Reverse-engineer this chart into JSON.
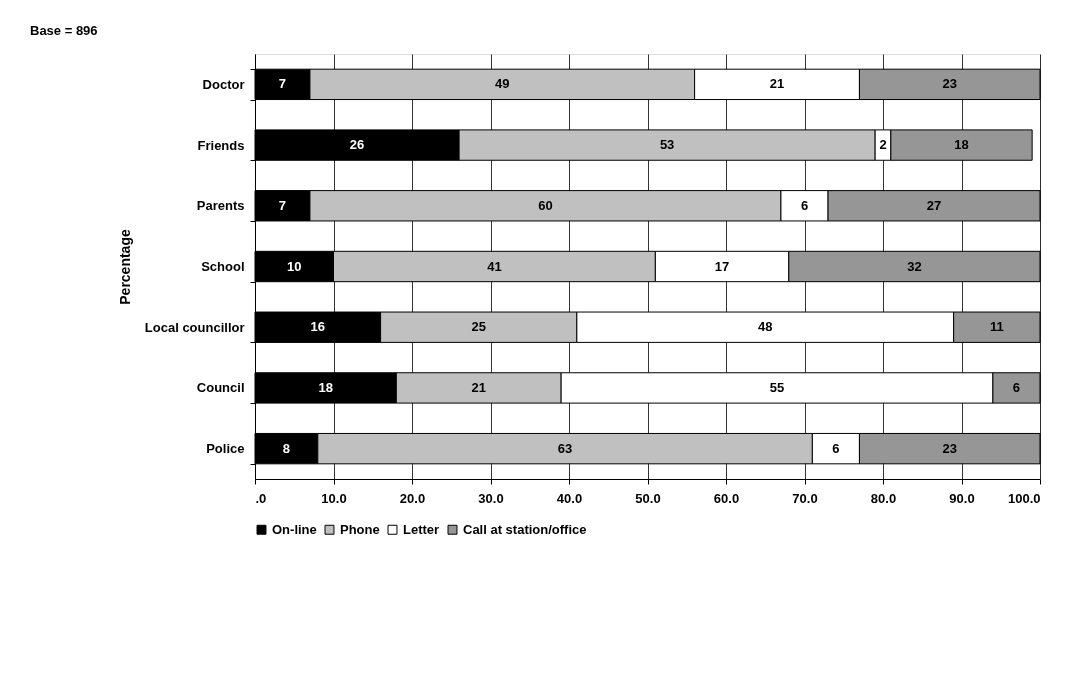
{
  "chart_data": {
    "type": "bar",
    "orientation": "horizontal",
    "stacked": true,
    "categories": [
      "Doctor",
      "Friends",
      "Parents",
      "School",
      "Local councillor",
      "Council",
      "Police"
    ],
    "series": [
      {
        "name": "On-line",
        "color": "#000000",
        "values": [
          7,
          26,
          7,
          10,
          16,
          18,
          8
        ]
      },
      {
        "name": "Phone",
        "color": "#c0c0c0",
        "values": [
          49,
          53,
          60,
          41,
          25,
          21,
          63
        ]
      },
      {
        "name": "Letter",
        "color": "#ffffff",
        "values": [
          21,
          2,
          6,
          17,
          48,
          55,
          6
        ]
      },
      {
        "name": "Call at station/office",
        "color": "#969696",
        "values": [
          23,
          18,
          27,
          32,
          11,
          6,
          23
        ]
      }
    ],
    "xlim": [
      0,
      100
    ],
    "xticks": [
      {
        "value": 0,
        "label": ".0"
      },
      {
        "value": 10,
        "label": "10.0"
      },
      {
        "value": 20,
        "label": "20.0"
      },
      {
        "value": 30,
        "label": "30.0"
      },
      {
        "value": 40,
        "label": "40.0"
      },
      {
        "value": 50,
        "label": "50.0"
      },
      {
        "value": 60,
        "label": "60.0"
      },
      {
        "value": 70,
        "label": "70.0"
      },
      {
        "value": 80,
        "label": "80.0"
      },
      {
        "value": 90,
        "label": "90.0"
      },
      {
        "value": 100,
        "label": "100.0"
      }
    ],
    "ylabel": "Percentage",
    "annotations": [
      "Base = 896"
    ],
    "data_labels": true,
    "grid": "x",
    "legend": "bottom"
  }
}
